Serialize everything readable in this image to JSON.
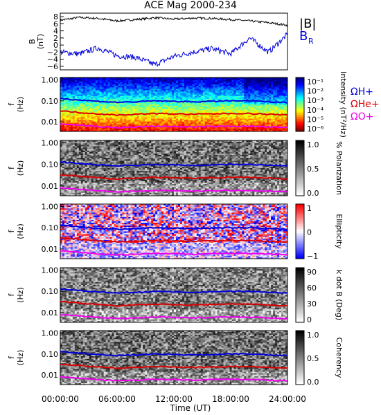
{
  "title": "ACE Mag 2000-234",
  "xlabel": "Time (UT)",
  "x_ticks": [
    "00:00:00",
    "06:00:00",
    "12:00:00",
    "18:00:00",
    "24:00:00"
  ],
  "chart_data": [
    {
      "type": "line",
      "ylabel": [
        "B",
        "(nT)"
      ],
      "ylim": [
        -7,
        9
      ],
      "y_ticks": [
        "8",
        "6",
        "4",
        "2",
        "0",
        "−2",
        "−4",
        "−6"
      ],
      "legend": [
        "|B|",
        "B_R"
      ],
      "x": [
        0,
        2,
        4,
        6,
        8,
        10,
        12,
        14,
        16,
        18,
        20,
        22,
        24
      ],
      "series": [
        {
          "name": "|B|",
          "color": "#000000",
          "values": [
            7.0,
            7.8,
            7.5,
            6.8,
            7.2,
            7.7,
            7.3,
            7.6,
            7.5,
            7.2,
            6.8,
            6.3,
            5.6
          ]
        },
        {
          "name": "B_R",
          "color": "#0000dd",
          "values": [
            -2.0,
            -2.5,
            -0.8,
            -3.0,
            -3.5,
            -5.5,
            -3.2,
            -2.0,
            -1.0,
            -2.5,
            2.0,
            -2.0,
            3.0
          ]
        }
      ]
    },
    {
      "type": "heatmap",
      "ylabel": [
        "f",
        "(Hz)"
      ],
      "y_ticks": [
        "1.00",
        "0.10",
        "0.01"
      ],
      "colorbar_label": "Intensity (nT²/Hz)",
      "colorbar_ticks": [
        "10⁻¹",
        "10⁻²",
        "10⁻³",
        "10⁻⁴",
        "10⁻⁵",
        "10⁻⁶"
      ],
      "legend": [
        "ΩH+",
        "ΩHe+",
        "ΩO+"
      ]
    },
    {
      "type": "heatmap",
      "ylabel": [
        "f",
        "(Hz)"
      ],
      "y_ticks": [
        "1.00",
        "0.10",
        "0.01"
      ],
      "colorbar_label": "% Polarization",
      "colorbar_ticks": [
        "1.0",
        "0.5",
        "0.0"
      ]
    },
    {
      "type": "heatmap",
      "ylabel": [
        "f",
        "(Hz)"
      ],
      "y_ticks": [
        "1.00",
        "0.10",
        "0.01"
      ],
      "colorbar_label": "Ellipticity",
      "colorbar_ticks": [
        "1",
        "0",
        "−1"
      ]
    },
    {
      "type": "heatmap",
      "ylabel": [
        "f",
        "(Hz)"
      ],
      "y_ticks": [
        "1.00",
        "0.10",
        "0.01"
      ],
      "colorbar_label": "k dot B (Deg)",
      "colorbar_ticks": [
        "90",
        "60",
        "30",
        "0"
      ]
    },
    {
      "type": "heatmap",
      "ylabel": [
        "f",
        "(Hz)"
      ],
      "y_ticks": [
        "1.00",
        "0.10",
        "0.01"
      ],
      "colorbar_label": "Coherency",
      "colorbar_ticks": [
        "1.0",
        "0.5",
        "0.0"
      ]
    }
  ],
  "gyro_lines": {
    "x": [
      0,
      2,
      4,
      6,
      8,
      10,
      12,
      14,
      16,
      18,
      20,
      22,
      24
    ],
    "H": [
      0.13,
      0.11,
      0.095,
      0.085,
      0.09,
      0.1,
      0.095,
      0.09,
      0.095,
      0.1,
      0.1,
      0.09,
      0.085
    ],
    "He": [
      0.033,
      0.028,
      0.024,
      0.021,
      0.023,
      0.025,
      0.024,
      0.023,
      0.024,
      0.025,
      0.025,
      0.023,
      0.021
    ],
    "O": [
      0.008,
      0.007,
      0.006,
      0.0053,
      0.0057,
      0.0062,
      0.006,
      0.0057,
      0.006,
      0.0062,
      0.0062,
      0.0057,
      0.0053
    ]
  },
  "colors": {
    "H": "#0000dd",
    "He": "#dd0000",
    "O": "#ee00ee"
  }
}
